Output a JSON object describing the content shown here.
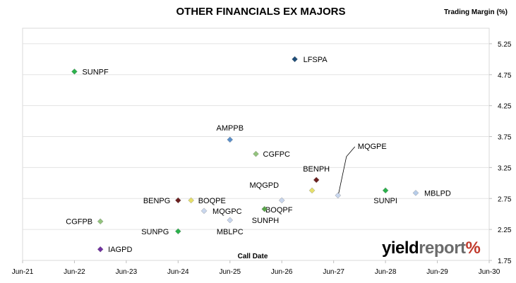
{
  "chart_data": {
    "type": "scatter",
    "title": "OTHER FINANCIALS EX MAJORS",
    "ylabel": "Trading Margin (%)",
    "xlabel": "Call Date",
    "x_ticks": [
      "Jun-21",
      "Jun-22",
      "Jun-23",
      "Jun-24",
      "Jun-25",
      "Jun-26",
      "Jun-27",
      "Jun-28",
      "Jun-29",
      "Jun-30"
    ],
    "y_ticks": [
      "5.25",
      "4.75",
      "4.25",
      "3.75",
      "3.25",
      "2.75",
      "2.25",
      "1.75"
    ],
    "xlim": [
      "Jun-21",
      "Jun-30"
    ],
    "ylim": [
      1.75,
      5.5
    ],
    "grid": "horizontal",
    "points": [
      {
        "label": "SUNPF",
        "x": "Jun-22",
        "y": 4.8,
        "color": "#2bb24c"
      },
      {
        "label": "LFSPA",
        "x": "Sep-26",
        "y": 5.0,
        "color": "#1f4e79"
      },
      {
        "label": "AMPPB",
        "x": "Jun-25",
        "y": 3.7,
        "color": "#5b8fc9"
      },
      {
        "label": "CGFPC",
        "x": "Dec-25",
        "y": 3.47,
        "color": "#93c47d"
      },
      {
        "label": "BENPH",
        "x": "Feb-27",
        "y": 3.05,
        "color": "#6b1f1f"
      },
      {
        "label": "MQGPD",
        "x": "Jan-27",
        "y": 2.88,
        "color": "#e6e06a"
      },
      {
        "label": "MQGPE",
        "x": "Jul-27",
        "y": 2.8,
        "color": "#c9d7ee"
      },
      {
        "label": "SUNPI",
        "x": "Jun-28",
        "y": 2.88,
        "color": "#2bb24c"
      },
      {
        "label": "MBLPD",
        "x": "Jan-29",
        "y": 2.84,
        "color": "#b7cdea"
      },
      {
        "label": "BENPG",
        "x": "Jun-24",
        "y": 2.72,
        "color": "#6b1f1f"
      },
      {
        "label": "BOQPE",
        "x": "Sep-24",
        "y": 2.72,
        "color": "#e6e06a"
      },
      {
        "label": "MQGPC",
        "x": "Dec-24",
        "y": 2.55,
        "color": "#c9d7ee"
      },
      {
        "label": "BOQPF",
        "x": "Jun-26",
        "y": 2.72,
        "color": "#c9d7ee"
      },
      {
        "label": "SUNPH",
        "x": "Feb-26",
        "y": 2.58,
        "color": "#59a54a"
      },
      {
        "label": "MBLPC",
        "x": "Jun-25",
        "y": 2.4,
        "color": "#c9d7ee"
      },
      {
        "label": "CGFPB",
        "x": "Dec-22",
        "y": 2.38,
        "color": "#93c47d"
      },
      {
        "label": "SUNPG",
        "x": "Jun-24",
        "y": 2.22,
        "color": "#2bb24c"
      },
      {
        "label": "IAGPD",
        "x": "Dec-22",
        "y": 1.93,
        "color": "#7030a0"
      }
    ]
  },
  "logo": {
    "yield": "yield",
    "report": "report",
    "pct": "%"
  }
}
